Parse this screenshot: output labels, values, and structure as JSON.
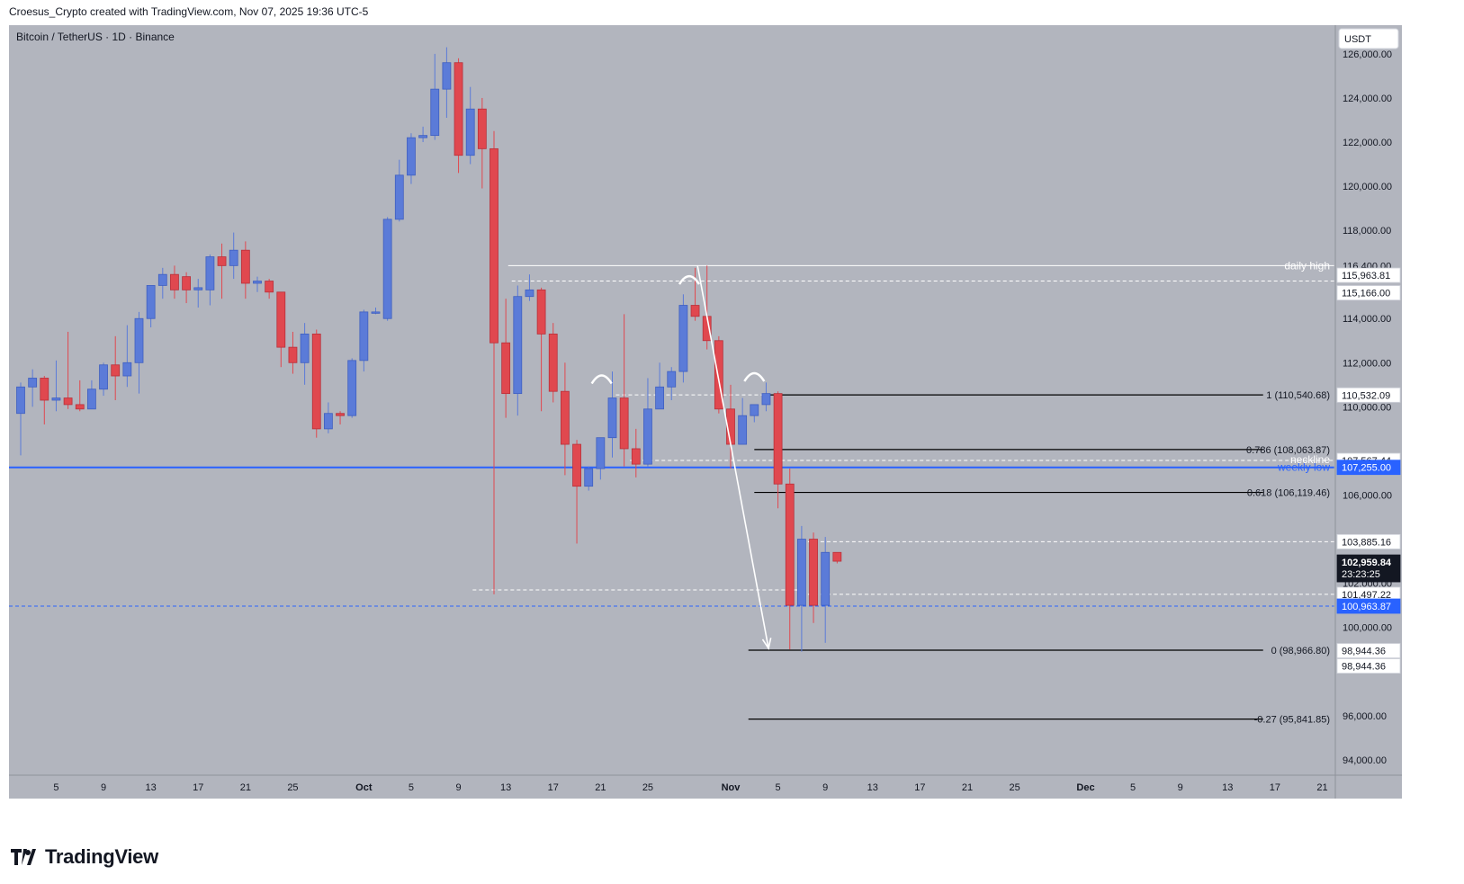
{
  "header": {
    "attribution": "Croesus_Crypto created with TradingView.com, Nov 07, 2025 19:36 UTC-5"
  },
  "footer": {
    "brand": "TradingView"
  },
  "chart_data": {
    "type": "candlestick",
    "title": "Bitcoin / TetherUS · 1D · Binance",
    "currency": "USDT",
    "colors": {
      "background": "#b2b5be",
      "up": "#5b7bd8",
      "down": "#e0484f",
      "accent_line": "#2962ff",
      "label_white": "#ffffff",
      "label_black": "#000000",
      "price_tag": "#131722"
    },
    "ylim": [
      93300,
      127300
    ],
    "xlim": [
      0,
      111
    ],
    "price_ticks": [
      126000,
      124000,
      122000,
      120000,
      118000,
      116400,
      114000,
      112000,
      110000,
      106000,
      102000,
      100000,
      96000,
      94000
    ],
    "price_tick_labels": [
      "126,000.00",
      "124,000.00",
      "122,000.00",
      "120,000.00",
      "118,000.00",
      "116,400.00",
      "114,000.00",
      "112,000.00",
      "110,000.00",
      "106,000.00",
      "102,000.00",
      "100,000.00",
      "96,000.00",
      "94,000.00"
    ],
    "x_ticks": [
      {
        "i": 3,
        "label": "5",
        "bold": false
      },
      {
        "i": 7,
        "label": "9",
        "bold": false
      },
      {
        "i": 11,
        "label": "13",
        "bold": false
      },
      {
        "i": 15,
        "label": "17",
        "bold": false
      },
      {
        "i": 19,
        "label": "21",
        "bold": false
      },
      {
        "i": 23,
        "label": "25",
        "bold": false
      },
      {
        "i": 29,
        "label": "Oct",
        "bold": true
      },
      {
        "i": 33,
        "label": "5",
        "bold": false
      },
      {
        "i": 37,
        "label": "9",
        "bold": false
      },
      {
        "i": 41,
        "label": "13",
        "bold": false
      },
      {
        "i": 45,
        "label": "17",
        "bold": false
      },
      {
        "i": 49,
        "label": "21",
        "bold": false
      },
      {
        "i": 53,
        "label": "25",
        "bold": false
      },
      {
        "i": 60,
        "label": "Nov",
        "bold": true
      },
      {
        "i": 64,
        "label": "5",
        "bold": false
      },
      {
        "i": 68,
        "label": "9",
        "bold": false
      },
      {
        "i": 72,
        "label": "13",
        "bold": false
      },
      {
        "i": 76,
        "label": "17",
        "bold": false
      },
      {
        "i": 80,
        "label": "21",
        "bold": false
      },
      {
        "i": 84,
        "label": "25",
        "bold": false
      },
      {
        "i": 90,
        "label": "Dec",
        "bold": true
      },
      {
        "i": 94,
        "label": "5",
        "bold": false
      },
      {
        "i": 98,
        "label": "9",
        "bold": false
      },
      {
        "i": 102,
        "label": "13",
        "bold": false
      },
      {
        "i": 106,
        "label": "17",
        "bold": false
      },
      {
        "i": 110,
        "label": "21",
        "bold": false
      }
    ],
    "candles": [
      {
        "i": 0,
        "o": 109700,
        "h": 111100,
        "l": 107800,
        "c": 110900
      },
      {
        "i": 1,
        "o": 110900,
        "h": 111700,
        "l": 110000,
        "c": 111300
      },
      {
        "i": 2,
        "o": 111300,
        "h": 111400,
        "l": 109200,
        "c": 110300
      },
      {
        "i": 3,
        "o": 110300,
        "h": 112100,
        "l": 109800,
        "c": 110400
      },
      {
        "i": 4,
        "o": 110400,
        "h": 113400,
        "l": 109900,
        "c": 110100
      },
      {
        "i": 5,
        "o": 110100,
        "h": 111200,
        "l": 109800,
        "c": 109900
      },
      {
        "i": 6,
        "o": 109900,
        "h": 111200,
        "l": 109900,
        "c": 110800
      },
      {
        "i": 7,
        "o": 110800,
        "h": 112000,
        "l": 110500,
        "c": 111900
      },
      {
        "i": 8,
        "o": 111900,
        "h": 113200,
        "l": 110300,
        "c": 111400
      },
      {
        "i": 9,
        "o": 111400,
        "h": 113700,
        "l": 110900,
        "c": 112000
      },
      {
        "i": 10,
        "o": 112000,
        "h": 114300,
        "l": 110600,
        "c": 114000
      },
      {
        "i": 11,
        "o": 114000,
        "h": 115500,
        "l": 113600,
        "c": 115500
      },
      {
        "i": 12,
        "o": 115500,
        "h": 116300,
        "l": 114900,
        "c": 116000
      },
      {
        "i": 13,
        "o": 116000,
        "h": 116400,
        "l": 114900,
        "c": 115300
      },
      {
        "i": 14,
        "o": 115900,
        "h": 116100,
        "l": 114700,
        "c": 115300
      },
      {
        "i": 15,
        "o": 115300,
        "h": 115800,
        "l": 114500,
        "c": 115400
      },
      {
        "i": 16,
        "o": 115300,
        "h": 116900,
        "l": 114600,
        "c": 116800
      },
      {
        "i": 17,
        "o": 116800,
        "h": 117400,
        "l": 114900,
        "c": 116400
      },
      {
        "i": 18,
        "o": 116400,
        "h": 117900,
        "l": 115800,
        "c": 117100
      },
      {
        "i": 19,
        "o": 117100,
        "h": 117500,
        "l": 114900,
        "c": 115600
      },
      {
        "i": 20,
        "o": 115600,
        "h": 115900,
        "l": 115200,
        "c": 115700
      },
      {
        "i": 21,
        "o": 115700,
        "h": 115800,
        "l": 114900,
        "c": 115200
      },
      {
        "i": 22,
        "o": 115200,
        "h": 115200,
        "l": 111800,
        "c": 112700
      },
      {
        "i": 23,
        "o": 112700,
        "h": 113400,
        "l": 111500,
        "c": 112000
      },
      {
        "i": 24,
        "o": 112000,
        "h": 113800,
        "l": 111000,
        "c": 113300
      },
      {
        "i": 25,
        "o": 113300,
        "h": 113500,
        "l": 108600,
        "c": 109000
      },
      {
        "i": 26,
        "o": 109000,
        "h": 110200,
        "l": 108800,
        "c": 109700
      },
      {
        "i": 27,
        "o": 109700,
        "h": 109800,
        "l": 109200,
        "c": 109600
      },
      {
        "i": 28,
        "o": 109600,
        "h": 112200,
        "l": 109500,
        "c": 112100
      },
      {
        "i": 29,
        "o": 112100,
        "h": 114400,
        "l": 111600,
        "c": 114300
      },
      {
        "i": 30,
        "o": 114300,
        "h": 114500,
        "l": 114200,
        "c": 114300
      },
      {
        "i": 31,
        "o": 114000,
        "h": 118600,
        "l": 113900,
        "c": 118500
      },
      {
        "i": 32,
        "o": 118500,
        "h": 121200,
        "l": 118400,
        "c": 120500
      },
      {
        "i": 33,
        "o": 120500,
        "h": 122400,
        "l": 120100,
        "c": 122200
      },
      {
        "i": 34,
        "o": 122200,
        "h": 122700,
        "l": 122000,
        "c": 122300
      },
      {
        "i": 35,
        "o": 122300,
        "h": 126000,
        "l": 122100,
        "c": 124400
      },
      {
        "i": 36,
        "o": 124400,
        "h": 126300,
        "l": 123100,
        "c": 125600
      },
      {
        "i": 37,
        "o": 125600,
        "h": 125800,
        "l": 120600,
        "c": 121400
      },
      {
        "i": 38,
        "o": 121400,
        "h": 124500,
        "l": 121000,
        "c": 123500
      },
      {
        "i": 39,
        "o": 123500,
        "h": 124000,
        "l": 119900,
        "c": 121700
      },
      {
        "i": 40,
        "o": 121700,
        "h": 122500,
        "l": 101500,
        "c": 112900
      },
      {
        "i": 41,
        "o": 112900,
        "h": 114900,
        "l": 109500,
        "c": 110600
      },
      {
        "i": 42,
        "o": 110600,
        "h": 115500,
        "l": 109600,
        "c": 115000
      },
      {
        "i": 43,
        "o": 115000,
        "h": 116000,
        "l": 114800,
        "c": 115300
      },
      {
        "i": 44,
        "o": 115300,
        "h": 115400,
        "l": 109800,
        "c": 113300
      },
      {
        "i": 45,
        "o": 113300,
        "h": 113800,
        "l": 110200,
        "c": 110700
      },
      {
        "i": 46,
        "o": 110700,
        "h": 112000,
        "l": 106900,
        "c": 108300
      },
      {
        "i": 47,
        "o": 108300,
        "h": 108500,
        "l": 103800,
        "c": 106400
      },
      {
        "i": 48,
        "o": 106400,
        "h": 107300,
        "l": 106200,
        "c": 107200
      },
      {
        "i": 49,
        "o": 107200,
        "h": 108400,
        "l": 106700,
        "c": 108600
      },
      {
        "i": 50,
        "o": 108600,
        "h": 111600,
        "l": 107700,
        "c": 110400
      },
      {
        "i": 51,
        "o": 110400,
        "h": 114200,
        "l": 107300,
        "c": 108100
      },
      {
        "i": 52,
        "o": 108100,
        "h": 109000,
        "l": 106800,
        "c": 107400
      },
      {
        "i": 53,
        "o": 107400,
        "h": 111300,
        "l": 107300,
        "c": 109900
      },
      {
        "i": 54,
        "o": 109900,
        "h": 112000,
        "l": 109900,
        "c": 110900
      },
      {
        "i": 55,
        "o": 110900,
        "h": 111800,
        "l": 110300,
        "c": 111600
      },
      {
        "i": 56,
        "o": 111600,
        "h": 115100,
        "l": 111100,
        "c": 114600
      },
      {
        "i": 57,
        "o": 114600,
        "h": 116300,
        "l": 113900,
        "c": 114100
      },
      {
        "i": 58,
        "o": 114100,
        "h": 116400,
        "l": 112600,
        "c": 113000
      },
      {
        "i": 59,
        "o": 113000,
        "h": 113200,
        "l": 109700,
        "c": 109900
      },
      {
        "i": 60,
        "o": 109900,
        "h": 111000,
        "l": 107200,
        "c": 108300
      },
      {
        "i": 61,
        "o": 108300,
        "h": 110400,
        "l": 108300,
        "c": 109600
      },
      {
        "i": 62,
        "o": 109600,
        "h": 110100,
        "l": 109300,
        "c": 110100
      },
      {
        "i": 63,
        "o": 110100,
        "h": 111100,
        "l": 109800,
        "c": 110600
      },
      {
        "i": 64,
        "o": 110600,
        "h": 110700,
        "l": 105400,
        "c": 106500
      },
      {
        "i": 65,
        "o": 106500,
        "h": 107200,
        "l": 99000,
        "c": 101000
      },
      {
        "i": 66,
        "o": 101000,
        "h": 104600,
        "l": 98900,
        "c": 104000
      },
      {
        "i": 67,
        "o": 104000,
        "h": 104300,
        "l": 100200,
        "c": 101000
      },
      {
        "i": 68,
        "o": 101000,
        "h": 104100,
        "l": 99300,
        "c": 103400
      },
      {
        "i": 69,
        "o": 103400,
        "h": 103400,
        "l": 102900,
        "c": 103000
      }
    ],
    "hlines": [
      {
        "price": 116400,
        "x1": 41.2,
        "x2": 111,
        "color": "#ffffff",
        "dash": false,
        "width": 1
      },
      {
        "price": 115700,
        "x1": 41.5,
        "x2": 111,
        "color": "#ffffff",
        "dash": true,
        "width": 1
      },
      {
        "price": 110540,
        "x1": 50.3,
        "x2": 63.0,
        "color": "#ffffff",
        "dash": true,
        "width": 1
      },
      {
        "price": 110540,
        "x1": 63.0,
        "x2": 105,
        "color": "#000000",
        "dash": false,
        "width": 1.2
      },
      {
        "price": 108064,
        "x1": 62.0,
        "x2": 105,
        "color": "#000000",
        "dash": false,
        "width": 1.2
      },
      {
        "price": 107567,
        "x1": 51.5,
        "x2": 111,
        "color": "#ffffff",
        "dash": true,
        "width": 1
      },
      {
        "price": 107255,
        "x1": -1,
        "x2": 111,
        "color": "#2962ff",
        "dash": false,
        "width": 2
      },
      {
        "price": 106119,
        "x1": 62.0,
        "x2": 105,
        "color": "#000000",
        "dash": false,
        "width": 1.2
      },
      {
        "price": 103885,
        "x1": 66.0,
        "x2": 111,
        "color": "#ffffff",
        "dash": true,
        "width": 1
      },
      {
        "price": 101700,
        "x1": 38.2,
        "x2": 66.0,
        "color": "#ffffff",
        "dash": true,
        "width": 1
      },
      {
        "price": 101497,
        "x1": 66.0,
        "x2": 111,
        "color": "#ffffff",
        "dash": true,
        "width": 1
      },
      {
        "price": 100964,
        "x1": -1,
        "x2": 111,
        "color": "#2962ff",
        "dash": true,
        "width": 1
      },
      {
        "price": 98967,
        "x1": 61.5,
        "x2": 105,
        "color": "#000000",
        "dash": false,
        "width": 1.2
      },
      {
        "price": 95842,
        "x1": 61.5,
        "x2": 105,
        "color": "#000000",
        "dash": false,
        "width": 1.2
      }
    ],
    "text_labels": [
      {
        "price": 116400,
        "text": "daily high",
        "x": 110.8,
        "color": "#ffffff",
        "size": 12
      },
      {
        "price": 110540,
        "text": "1 (110,540.68)",
        "x": 110.8,
        "color": "#131722",
        "size": 11
      },
      {
        "price": 108064,
        "text": "0.786 (108,063.87)",
        "x": 110.8,
        "color": "#131722",
        "size": 11
      },
      {
        "price": 107600,
        "text": "neckline",
        "x": 110.8,
        "color": "#ffffff",
        "size": 12
      },
      {
        "price": 107255,
        "text": "weekly low",
        "x": 110.8,
        "color": "#2962ff",
        "size": 12
      },
      {
        "price": 106119,
        "text": "0.618 (106,119.46)",
        "x": 110.8,
        "color": "#131722",
        "size": 11
      },
      {
        "price": 98967,
        "text": "0 (98,966.80)",
        "x": 110.8,
        "color": "#131722",
        "size": 11
      },
      {
        "price": 95842,
        "text": "-0.27 (95,841.85)",
        "x": 110.8,
        "color": "#131722",
        "size": 11
      }
    ],
    "price_labels": [
      {
        "price": 115964,
        "text": "115,963.81",
        "style": "white"
      },
      {
        "price": 115166,
        "text": "115,166.00",
        "style": "white"
      },
      {
        "price": 110532,
        "text": "110,532.09",
        "style": "white"
      },
      {
        "price": 107567,
        "text": "107,567.44",
        "style": "white"
      },
      {
        "price": 107255,
        "text": "107,255.00",
        "style": "blue"
      },
      {
        "price": 103885,
        "text": "103,885.16",
        "style": "white"
      },
      {
        "price": 102960,
        "text": "102,959.84",
        "sub": "23:23:25",
        "style": "black"
      },
      {
        "price": 101497,
        "text": "101,497.22",
        "style": "white"
      },
      {
        "price": 100964,
        "text": "100,963.87",
        "style": "blue"
      },
      {
        "price": 98944,
        "text": "98,944.36",
        "style": "white"
      },
      {
        "price": 98944,
        "text": "98,944.36",
        "style": "white",
        "offset": 1
      }
    ],
    "arcs": [
      {
        "i": 49.1,
        "price": 111300
      },
      {
        "i": 56.5,
        "price": 115800
      },
      {
        "i": 62.0,
        "price": 111400
      }
    ],
    "arrow": {
      "from": [
        57.2,
        116400
      ],
      "to": [
        63.2,
        99050
      ]
    }
  }
}
